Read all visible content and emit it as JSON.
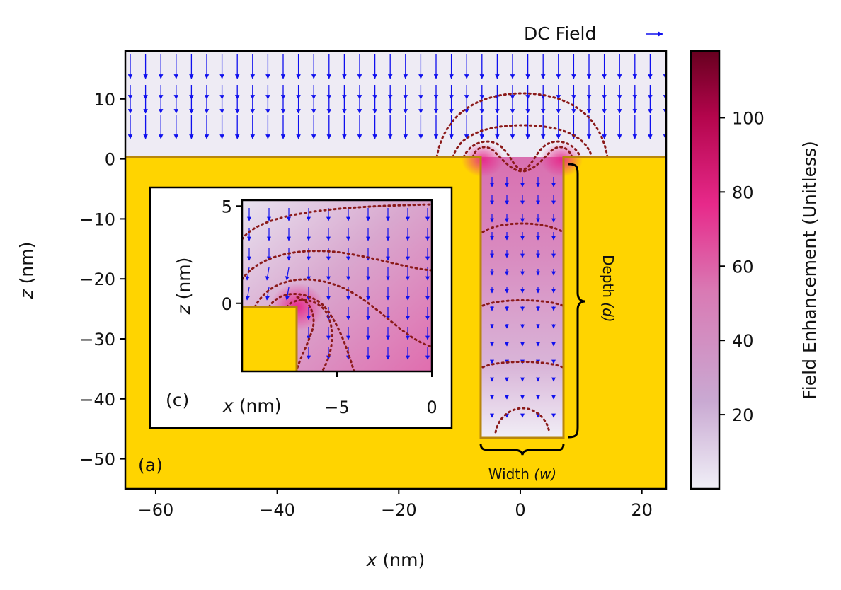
{
  "chart_data": {
    "type": "heatmap",
    "main_panel": {
      "panel_label": "(a)",
      "xlabel_var": "x",
      "xlabel_unit": " (nm)",
      "ylabel_var": "z",
      "ylabel_unit": " (nm)",
      "xlim": [
        -65,
        24
      ],
      "ylim": [
        -55,
        18
      ],
      "xticks": [
        -60,
        -40,
        -20,
        0,
        20
      ],
      "xtick_labels": [
        "−60",
        "−40",
        "−20",
        "0",
        "20"
      ],
      "yticks": [
        10,
        0,
        -10,
        -20,
        -30,
        -40,
        -50
      ],
      "ytick_labels": [
        "10",
        "0",
        "−10",
        "−20",
        "−30",
        "−40",
        "−50"
      ],
      "gold_surface_z": 0,
      "trench": {
        "x_min": -6.6,
        "x_max": 6.6,
        "z_bottom": -46
      },
      "gold_color": "#FFD400",
      "gold_edge_color": "#B8860B",
      "field_vector_color": "#1010EE",
      "contour_color": "#8B1A1A"
    },
    "annotations": {
      "legend_label": "DC Field",
      "depth_label": "Depth",
      "depth_var": "(d)",
      "width_label": "Width",
      "width_var": "(w)"
    },
    "inset": {
      "panel_label": "(c)",
      "xlabel_var": "x",
      "xlabel_unit": " (nm)",
      "ylabel_var": "z",
      "ylabel_unit": " (nm)",
      "xlim": [
        -10,
        0
      ],
      "ylim": [
        -3.5,
        5.3
      ],
      "xticks": [
        -5,
        0
      ],
      "xtick_labels": [
        "−5",
        "0"
      ],
      "yticks": [
        5,
        0
      ],
      "ytick_labels": [
        "5",
        "0"
      ],
      "gold_corner": {
        "x_max": -7,
        "z_max": 0
      }
    },
    "colorbar": {
      "label": "Field Enhancement (Unitless)",
      "range": [
        0,
        118
      ],
      "ticks": [
        20,
        40,
        60,
        80,
        100
      ],
      "tick_labels": [
        "20",
        "40",
        "60",
        "80",
        "100"
      ],
      "colormap": [
        "#F0EFF7",
        "#C9A9D2",
        "#D97AB4",
        "#E7298A",
        "#B3054C",
        "#67001F"
      ]
    }
  }
}
